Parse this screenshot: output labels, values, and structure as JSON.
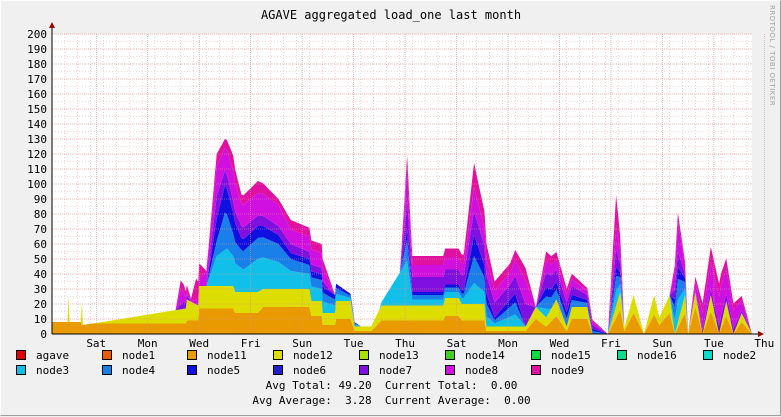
{
  "watermark": "RRDTOOL / TOBI OETIKER",
  "summary": {
    "line1": "Avg Total: 49.20  Current Total:  0.00",
    "line2": "Avg Average:  3.28  Current Average:  0.00"
  },
  "chart_data": {
    "type": "area",
    "title": "AGAVE aggregated load_one last month",
    "xlabel": "",
    "ylabel": "",
    "ylim": [
      0,
      200
    ],
    "yticks": [
      0,
      10,
      20,
      30,
      40,
      50,
      60,
      70,
      80,
      90,
      100,
      110,
      120,
      130,
      140,
      150,
      160,
      170,
      180,
      190,
      200
    ],
    "xlim": [
      0,
      680
    ],
    "xticks": [
      {
        "x": 43,
        "label": "Sat"
      },
      {
        "x": 93,
        "label": "Mon"
      },
      {
        "x": 143,
        "label": "Wed"
      },
      {
        "x": 193,
        "label": "Fri"
      },
      {
        "x": 243,
        "label": "Sun"
      },
      {
        "x": 293,
        "label": "Tue"
      },
      {
        "x": 343,
        "label": "Thu"
      },
      {
        "x": 393,
        "label": "Sat"
      },
      {
        "x": 443,
        "label": "Mon"
      },
      {
        "x": 493,
        "label": "Wed"
      },
      {
        "x": 543,
        "label": "Fri"
      },
      {
        "x": 593,
        "label": "Sun"
      },
      {
        "x": 643,
        "label": "Tue"
      },
      {
        "x": 692,
        "label": "Thu"
      }
    ],
    "grid": true,
    "stacked": true,
    "legend_position": "bottom",
    "legend": [
      {
        "name": "agave",
        "color": "#e00000"
      },
      {
        "name": "node1",
        "color": "#f05a00"
      },
      {
        "name": "node11",
        "color": "#e89a00"
      },
      {
        "name": "node12",
        "color": "#dddd00"
      },
      {
        "name": "node13",
        "color": "#a8e000"
      },
      {
        "name": "node14",
        "color": "#40d020"
      },
      {
        "name": "node15",
        "color": "#00dd40"
      },
      {
        "name": "node16",
        "color": "#00dd88"
      },
      {
        "name": "node2",
        "color": "#00ddcc"
      },
      {
        "name": "node3",
        "color": "#10c0e8"
      },
      {
        "name": "node4",
        "color": "#1880e8"
      },
      {
        "name": "node5",
        "color": "#1010e0"
      },
      {
        "name": "node6",
        "color": "#2020c8"
      },
      {
        "name": "node7",
        "color": "#8010e0"
      },
      {
        "name": "node8",
        "color": "#d010e0"
      },
      {
        "name": "node9",
        "color": "#e010a0"
      }
    ],
    "series": [
      {
        "name": "node11",
        "color": "#e89a00",
        "x": [
          0,
          28,
          29,
          40,
          130,
          131,
          142,
          143,
          176,
          178,
          200,
          205,
          250,
          252,
          262,
          263,
          275,
          276,
          290,
          294,
          310,
          320,
          380,
          382,
          395,
          398,
          420,
          422,
          460,
          470,
          480,
          490,
          500,
          505,
          520,
          525,
          540,
          552,
          556,
          565,
          575,
          585,
          590,
          600,
          605,
          615,
          618,
          625,
          632,
          640,
          648,
          655,
          662,
          670,
          680
        ],
        "values": [
          8,
          8,
          6,
          7,
          7,
          9,
          9,
          17,
          17,
          14,
          14,
          18,
          18,
          12,
          12,
          6,
          6,
          10,
          10,
          2,
          2,
          9,
          9,
          12,
          12,
          9,
          9,
          2,
          2,
          10,
          5,
          12,
          2,
          10,
          10,
          0,
          0,
          16,
          2,
          14,
          0,
          13,
          6,
          14,
          0,
          14,
          0,
          18,
          0,
          15,
          0,
          12,
          0,
          8,
          0
        ]
      },
      {
        "name": "node12",
        "color": "#dddd00",
        "x": [
          0,
          15,
          16,
          17,
          28,
          29,
          30,
          40,
          130,
          131,
          142,
          143,
          176,
          178,
          200,
          205,
          250,
          252,
          262,
          263,
          275,
          276,
          290,
          294,
          310,
          320,
          380,
          382,
          395,
          398,
          420,
          422,
          460,
          470,
          480,
          490,
          500,
          505,
          520,
          525,
          540,
          552,
          556,
          565,
          575,
          585,
          590,
          600,
          605,
          615,
          618,
          625,
          632,
          640,
          648,
          655,
          662,
          670,
          680
        ],
        "values": [
          0,
          0,
          17,
          0,
          0,
          15,
          0,
          0,
          10,
          14,
          10,
          15,
          15,
          14,
          14,
          12,
          12,
          10,
          10,
          8,
          8,
          12,
          12,
          3,
          3,
          10,
          10,
          12,
          12,
          11,
          11,
          3,
          3,
          8,
          6,
          11,
          3,
          8,
          8,
          0,
          0,
          12,
          2,
          12,
          0,
          13,
          5,
          12,
          0,
          12,
          0,
          10,
          0,
          11,
          0,
          10,
          0,
          6,
          0
        ]
      },
      {
        "name": "node3",
        "color": "#10c0e8",
        "x": [
          0,
          140,
          150,
          160,
          170,
          176,
          186,
          200,
          220,
          232,
          250,
          262,
          270,
          300,
          318,
          338,
          345,
          350,
          400,
          410,
          430,
          450,
          460,
          470,
          480,
          485,
          540,
          548,
          556,
          600,
          608,
          618,
          680
        ],
        "values": [
          0,
          0,
          0,
          20,
          25,
          20,
          15,
          22,
          18,
          12,
          10,
          8,
          6,
          0,
          0,
          22,
          30,
          4,
          4,
          14,
          2,
          8,
          0,
          0,
          6,
          0,
          0,
          10,
          0,
          0,
          15,
          0,
          0
        ]
      },
      {
        "name": "node4",
        "color": "#1880e8",
        "x": [
          0,
          150,
          160,
          168,
          176,
          184,
          200,
          220,
          232,
          250,
          262,
          275,
          300,
          338,
          345,
          350,
          400,
          410,
          430,
          450,
          460,
          470,
          480,
          540,
          548,
          556,
          600,
          608,
          618,
          680
        ],
        "values": [
          0,
          0,
          10,
          25,
          15,
          12,
          14,
          12,
          8,
          6,
          6,
          4,
          0,
          0,
          14,
          3,
          3,
          18,
          2,
          8,
          0,
          0,
          8,
          0,
          10,
          0,
          0,
          14,
          0,
          0
        ]
      },
      {
        "name": "node5",
        "color": "#1010e0",
        "x": [
          0,
          150,
          160,
          168,
          176,
          184,
          200,
          220,
          232,
          262,
          275,
          300,
          338,
          345,
          350,
          400,
          410,
          430,
          450,
          460,
          470,
          480,
          540,
          548,
          556,
          600,
          608,
          618,
          680
        ],
        "values": [
          0,
          0,
          15,
          18,
          14,
          8,
          8,
          6,
          4,
          4,
          3,
          0,
          0,
          6,
          2,
          2,
          14,
          2,
          6,
          0,
          0,
          6,
          0,
          6,
          0,
          0,
          8,
          0,
          0
        ]
      },
      {
        "name": "node7",
        "color": "#8010e0",
        "x": [
          0,
          120,
          128,
          135,
          150,
          160,
          168,
          176,
          184,
          200,
          220,
          232,
          262,
          275,
          300,
          338,
          345,
          350,
          400,
          410,
          430,
          445,
          460,
          470,
          480,
          540,
          548,
          556,
          600,
          608,
          618,
          640,
          650,
          680
        ],
        "values": [
          0,
          0,
          5,
          0,
          0,
          15,
          10,
          8,
          8,
          7,
          6,
          6,
          4,
          0,
          0,
          0,
          20,
          10,
          10,
          16,
          10,
          10,
          15,
          0,
          10,
          0,
          12,
          0,
          0,
          10,
          0,
          4,
          6,
          0
        ]
      },
      {
        "name": "node8",
        "color": "#d010e0",
        "x": [
          0,
          120,
          125,
          130,
          135,
          150,
          160,
          168,
          176,
          184,
          200,
          220,
          232,
          262,
          275,
          300,
          338,
          345,
          350,
          400,
          410,
          430,
          445,
          460,
          470,
          480,
          540,
          548,
          556,
          600,
          608,
          618,
          640,
          650,
          680
        ],
        "values": [
          0,
          0,
          10,
          4,
          0,
          10,
          20,
          15,
          20,
          15,
          15,
          14,
          10,
          10,
          0,
          0,
          0,
          22,
          8,
          8,
          16,
          8,
          8,
          16,
          0,
          8,
          0,
          16,
          0,
          0,
          20,
          0,
          18,
          20,
          0
        ]
      },
      {
        "name": "node9",
        "color": "#e010a0",
        "x": [
          0,
          120,
          125,
          135,
          140,
          150,
          160,
          168,
          176,
          184,
          200,
          220,
          232,
          262,
          275,
          300,
          338,
          345,
          350,
          400,
          410,
          430,
          445,
          460,
          470,
          480,
          540,
          548,
          556,
          600,
          608,
          618,
          640,
          650,
          680
        ],
        "values": [
          0,
          0,
          6,
          2,
          14,
          0,
          8,
          6,
          10,
          6,
          8,
          4,
          6,
          6,
          0,
          0,
          0,
          8,
          6,
          6,
          16,
          6,
          6,
          8,
          0,
          6,
          0,
          20,
          0,
          0,
          6,
          0,
          10,
          8,
          0
        ]
      }
    ]
  }
}
